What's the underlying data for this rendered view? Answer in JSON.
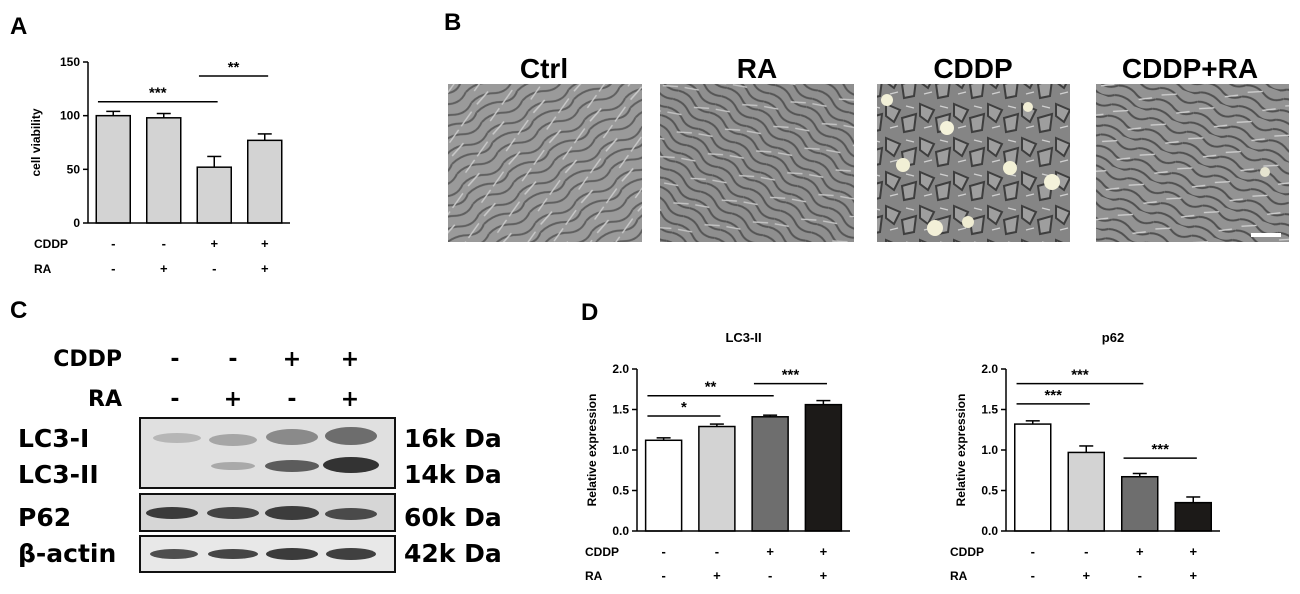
{
  "panel_labels": {
    "a": "A",
    "b": "B",
    "c": "C",
    "d": "D"
  },
  "micrographs": {
    "labels": [
      "Ctrl",
      "RA",
      "CDDP",
      "CDDP+RA"
    ]
  },
  "western_blot": {
    "row_labels": [
      "CDDP",
      "RA"
    ],
    "cddp": [
      "-",
      "-",
      "+",
      "+"
    ],
    "ra": [
      "-",
      "+",
      "-",
      "+"
    ],
    "bands": [
      {
        "name": "LC3-I",
        "size": "16k Da"
      },
      {
        "name": "LC3-II",
        "size": "14k Da"
      },
      {
        "name": "P62",
        "size": "60k Da"
      },
      {
        "name": "β-actin",
        "size": "42k Da"
      }
    ]
  },
  "chart_data": [
    {
      "type": "bar",
      "title": "",
      "ylabel": "cell viability",
      "ylim": [
        0,
        150
      ],
      "yticks": [
        "0",
        "50",
        "100",
        "150"
      ],
      "condition_labels": [
        "CDDP",
        "RA"
      ],
      "cddp": [
        "-",
        "-",
        "+",
        "+"
      ],
      "ra": [
        "-",
        "+",
        "-",
        "+"
      ],
      "values": [
        100,
        98,
        52,
        77
      ],
      "errors": [
        4,
        4,
        10,
        6
      ],
      "colors": [
        "#d3d3d3",
        "#d3d3d3",
        "#d3d3d3",
        "#d3d3d3"
      ],
      "significance": [
        {
          "from": 0,
          "to": 2,
          "label": "***",
          "y": 113
        },
        {
          "from": 2,
          "to": 3,
          "label": "**",
          "y": 137
        }
      ]
    },
    {
      "type": "bar",
      "title": "LC3-II",
      "ylabel": "Relative expression",
      "ylim": [
        0,
        2.0
      ],
      "yticks": [
        "0.0",
        "0.5",
        "1.0",
        "1.5",
        "2.0"
      ],
      "condition_labels": [
        "CDDP",
        "RA"
      ],
      "cddp": [
        "-",
        "-",
        "+",
        "+"
      ],
      "ra": [
        "-",
        "+",
        "-",
        "+"
      ],
      "values": [
        1.12,
        1.29,
        1.41,
        1.56
      ],
      "errors": [
        0.03,
        0.03,
        0.02,
        0.05
      ],
      "colors": [
        "#ffffff",
        "#d3d3d3",
        "#6e6e6e",
        "#1c1a18"
      ],
      "significance": [
        {
          "from": 0,
          "to": 1,
          "label": "*",
          "y": 1.42
        },
        {
          "from": 0,
          "to": 2,
          "label": "**",
          "y": 1.67
        },
        {
          "from": 2,
          "to": 3,
          "label": "***",
          "y": 1.82
        }
      ]
    },
    {
      "type": "bar",
      "title": "p62",
      "ylabel": "Relative expression",
      "ylim": [
        0,
        2.0
      ],
      "yticks": [
        "0.0",
        "0.5",
        "1.0",
        "1.5",
        "2.0"
      ],
      "condition_labels": [
        "CDDP",
        "RA"
      ],
      "cddp": [
        "-",
        "-",
        "+",
        "+"
      ],
      "ra": [
        "-",
        "+",
        "-",
        "+"
      ],
      "values": [
        1.32,
        0.97,
        0.67,
        0.35
      ],
      "errors": [
        0.04,
        0.08,
        0.04,
        0.07
      ],
      "colors": [
        "#ffffff",
        "#d3d3d3",
        "#6e6e6e",
        "#1c1a18"
      ],
      "significance": [
        {
          "from": 0,
          "to": 1,
          "label": "***",
          "y": 1.57
        },
        {
          "from": 0,
          "to": 2,
          "label": "***",
          "y": 1.82
        },
        {
          "from": 2,
          "to": 3,
          "label": "***",
          "y": 0.9
        }
      ]
    }
  ]
}
